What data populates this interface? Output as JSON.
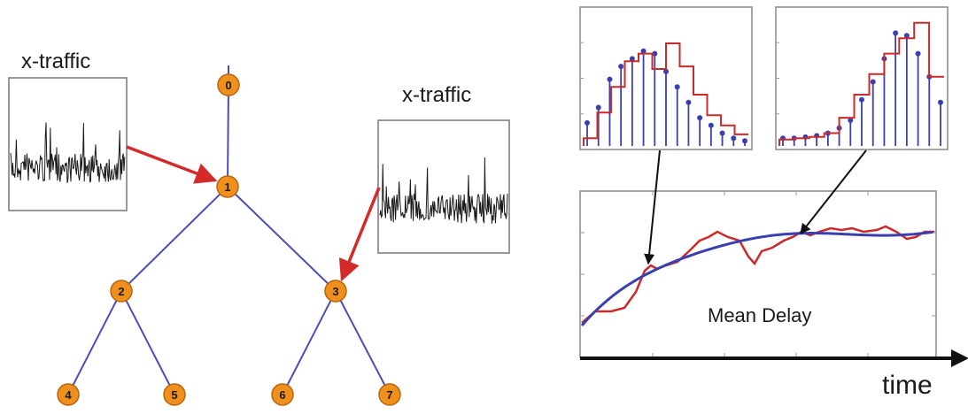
{
  "labels": {
    "xtraffic_left": "x-traffic",
    "xtraffic_right": "x-traffic",
    "mean_delay": "Mean Delay",
    "time": "time"
  },
  "tree": {
    "nodes": [
      "0",
      "1",
      "2",
      "3",
      "4",
      "5",
      "6",
      "7"
    ],
    "edges": [
      [
        "0",
        "1"
      ],
      [
        "1",
        "2"
      ],
      [
        "1",
        "3"
      ],
      [
        "2",
        "4"
      ],
      [
        "2",
        "5"
      ],
      [
        "3",
        "6"
      ],
      [
        "3",
        "7"
      ]
    ]
  },
  "colors": {
    "node_fill": "#f0901c",
    "node_stroke": "#b86410",
    "edge": "#4a4fb8",
    "arrow_red": "#d42a2a",
    "stem_blue": "#3a3fb0",
    "hist_red": "#cc2a2a",
    "trace_black": "#1a1a1a",
    "axis": "#111111",
    "frame": "#777777"
  },
  "histograms": [
    {
      "name": "left",
      "stems": [
        0.18,
        0.3,
        0.52,
        0.62,
        0.68,
        0.74,
        0.72,
        0.58,
        0.46,
        0.34,
        0.22,
        0.16,
        0.1,
        0.06,
        0.04
      ],
      "steps": [
        0.06,
        0.26,
        0.46,
        0.66,
        0.72,
        0.6,
        0.8,
        0.62,
        0.4,
        0.24,
        0.16,
        0.09
      ]
    },
    {
      "name": "right",
      "stems": [
        0.06,
        0.06,
        0.07,
        0.08,
        0.1,
        0.14,
        0.2,
        0.36,
        0.5,
        0.68,
        0.88,
        0.86,
        0.72,
        0.54,
        0.34
      ],
      "steps": [
        0.05,
        0.06,
        0.07,
        0.1,
        0.22,
        0.4,
        0.56,
        0.72,
        0.84,
        0.96,
        0.54
      ]
    }
  ]
}
